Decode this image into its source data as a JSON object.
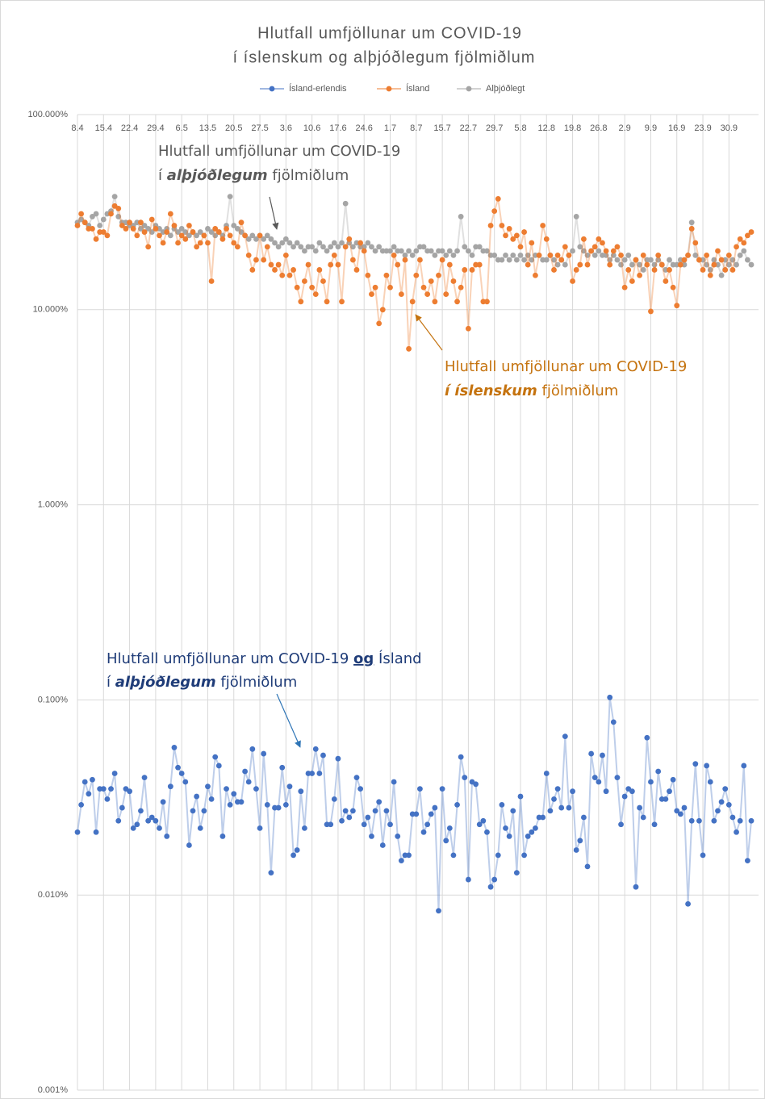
{
  "chart_data": {
    "type": "line",
    "title": [
      "Hlutfall umfjöllunar um COVID-19",
      "í íslenskum og alþjóðlegum fjölmiðlum"
    ],
    "log_scale": true,
    "grid": true,
    "legend": "top",
    "ylim": [
      0.001,
      100
    ],
    "yticks": [
      {
        "value": 100,
        "label": "100.000%"
      },
      {
        "value": 10,
        "label": "10.000%"
      },
      {
        "value": 1,
        "label": "1.000%"
      },
      {
        "value": 0.1,
        "label": "0.100%"
      },
      {
        "value": 0.01,
        "label": "0.010%"
      },
      {
        "value": 0.001,
        "label": "0.001%"
      }
    ],
    "categories": [
      "8.4",
      null,
      null,
      null,
      null,
      null,
      null,
      "15.4",
      null,
      null,
      null,
      null,
      null,
      null,
      "22.4",
      null,
      null,
      null,
      null,
      null,
      null,
      "29.4",
      null,
      null,
      null,
      null,
      null,
      null,
      "6.5",
      null,
      null,
      null,
      null,
      null,
      null,
      "13.5",
      null,
      null,
      null,
      null,
      null,
      null,
      "20.5",
      null,
      null,
      null,
      null,
      null,
      null,
      "27.5",
      null,
      null,
      null,
      null,
      null,
      null,
      "3.6",
      null,
      null,
      null,
      null,
      null,
      null,
      "10.6",
      null,
      null,
      null,
      null,
      null,
      null,
      "17.6",
      null,
      null,
      null,
      null,
      null,
      null,
      "24.6",
      null,
      null,
      null,
      null,
      null,
      null,
      "1.7",
      null,
      null,
      null,
      null,
      null,
      null,
      "8.7",
      null,
      null,
      null,
      null,
      null,
      null,
      "15.7",
      null,
      null,
      null,
      null,
      null,
      null,
      "22.7",
      null,
      null,
      null,
      null,
      null,
      null,
      "29.7",
      null,
      null,
      null,
      null,
      null,
      null,
      "5.8",
      null,
      null,
      null,
      null,
      null,
      null,
      "12.8",
      null,
      null,
      null,
      null,
      null,
      null,
      "19.8",
      null,
      null,
      null,
      null,
      null,
      null,
      "26.8",
      null,
      null,
      null,
      null,
      null,
      null,
      "2.9",
      null,
      null,
      null,
      null,
      null,
      null,
      "9.9",
      null,
      null,
      null,
      null,
      null,
      null,
      "16.9",
      null,
      null,
      null,
      null,
      null,
      null,
      "23.9",
      null,
      null,
      null,
      null,
      null,
      null,
      "30.9",
      null,
      null,
      null,
      null,
      null,
      null
    ],
    "series": [
      {
        "name": "Ísland-erlendis",
        "color": "#4472c4",
        "values": [
          0.021,
          0.029,
          0.038,
          0.033,
          0.039,
          0.021,
          0.035,
          0.035,
          0.031,
          0.035,
          0.042,
          0.024,
          0.028,
          0.035,
          0.034,
          0.022,
          0.023,
          0.027,
          0.04,
          0.024,
          0.025,
          0.024,
          0.022,
          0.03,
          0.02,
          0.036,
          0.057,
          0.045,
          0.042,
          0.038,
          0.018,
          0.027,
          0.032,
          0.022,
          0.027,
          0.036,
          0.031,
          0.051,
          0.046,
          0.02,
          0.035,
          0.029,
          0.033,
          0.03,
          0.03,
          0.043,
          0.038,
          0.056,
          0.035,
          0.022,
          0.053,
          0.029,
          0.013,
          0.028,
          0.028,
          0.045,
          0.029,
          0.036,
          0.016,
          0.017,
          0.034,
          0.022,
          0.042,
          0.042,
          0.056,
          0.042,
          0.052,
          0.023,
          0.023,
          0.031,
          0.05,
          0.024,
          0.027,
          0.025,
          0.027,
          0.04,
          0.035,
          0.023,
          0.025,
          0.02,
          0.027,
          0.03,
          0.018,
          0.027,
          0.023,
          0.038,
          0.02,
          0.015,
          0.016,
          0.016,
          0.026,
          0.026,
          0.035,
          0.021,
          0.023,
          0.026,
          0.028,
          0.0083,
          0.035,
          0.019,
          0.022,
          0.016,
          0.029,
          0.051,
          0.04,
          0.012,
          0.038,
          0.037,
          0.023,
          0.024,
          0.021,
          0.011,
          0.012,
          0.016,
          0.029,
          0.022,
          0.02,
          0.027,
          0.013,
          0.032,
          0.016,
          0.02,
          0.021,
          0.022,
          0.025,
          0.025,
          0.042,
          0.027,
          0.031,
          0.035,
          0.028,
          0.065,
          0.028,
          0.034,
          0.017,
          0.019,
          0.025,
          0.014,
          0.053,
          0.04,
          0.038,
          0.052,
          0.034,
          0.103,
          0.077,
          0.04,
          0.023,
          0.032,
          0.035,
          0.034,
          0.011,
          0.028,
          0.025,
          0.064,
          0.038,
          0.023,
          0.043,
          0.031,
          0.031,
          0.034,
          0.039,
          0.027,
          0.026,
          0.028,
          0.009,
          0.024,
          0.047,
          0.024,
          0.016,
          0.046,
          0.038,
          0.024,
          0.027,
          0.03,
          0.035,
          0.029,
          0.025,
          0.021,
          0.024,
          0.046,
          0.015,
          0.024
        ]
      },
      {
        "name": "Ísland",
        "color": "#ed7d31",
        "values": [
          27,
          31,
          28,
          26,
          26,
          23,
          25,
          25,
          24,
          31,
          34,
          33,
          27,
          26,
          28,
          26,
          24,
          28,
          25,
          21,
          29,
          26,
          24,
          22,
          25,
          31,
          27,
          22,
          24,
          23,
          27,
          25,
          21,
          22,
          24,
          22,
          14,
          26,
          25,
          23,
          26,
          24,
          22,
          21,
          28,
          24,
          19,
          16,
          18,
          24,
          18,
          21,
          17,
          16,
          17,
          15,
          19,
          15,
          16,
          13,
          11,
          14,
          17,
          13,
          12,
          16,
          14,
          11,
          17,
          19,
          17,
          11,
          21,
          23,
          18,
          16,
          22,
          20,
          15,
          12,
          13,
          8.5,
          10,
          15,
          13,
          19,
          17,
          12,
          18,
          6.3,
          11,
          15,
          18,
          13,
          12,
          14,
          11,
          15,
          18,
          12,
          17,
          14,
          11,
          13,
          16,
          8,
          16,
          17,
          17,
          11,
          11,
          27,
          32,
          37,
          27,
          24,
          26,
          23,
          24,
          21,
          25,
          17,
          22,
          15,
          19,
          27,
          23,
          19,
          16,
          19,
          18,
          21,
          19,
          14,
          16,
          17,
          23,
          17,
          20,
          21,
          23,
          22,
          20,
          17,
          20,
          21,
          19,
          13,
          16,
          14,
          18,
          15,
          19,
          17,
          9.8,
          16,
          19,
          17,
          14,
          16,
          13,
          10.5,
          17,
          18,
          19,
          26,
          22,
          18,
          16,
          19,
          15,
          17,
          20,
          18,
          16,
          19,
          16,
          21,
          23,
          22,
          24,
          25
        ]
      },
      {
        "name": "Alþjóðlegt",
        "color": "#a5a5a5",
        "values": [
          28,
          29,
          28,
          27,
          30,
          31,
          27,
          29,
          31,
          32,
          38,
          30,
          28,
          28,
          27,
          27,
          28,
          26,
          27,
          26,
          25,
          27,
          26,
          25,
          26,
          24,
          26,
          25,
          26,
          25,
          24,
          25,
          24,
          25,
          24,
          26,
          25,
          24,
          25,
          24,
          27,
          38,
          27,
          26,
          25,
          24,
          23,
          24,
          23,
          24,
          23,
          24,
          23,
          22,
          21,
          22,
          23,
          22,
          21,
          22,
          21,
          20,
          21,
          21,
          20,
          22,
          21,
          20,
          21,
          22,
          21,
          22,
          35,
          22,
          21,
          22,
          21,
          21,
          22,
          21,
          20,
          21,
          20,
          20,
          20,
          21,
          20,
          20,
          19,
          20,
          19,
          20,
          21,
          21,
          20,
          20,
          19,
          20,
          20,
          19,
          20,
          19,
          20,
          30,
          21,
          20,
          19,
          21,
          21,
          20,
          20,
          19,
          19,
          18,
          18,
          19,
          18,
          19,
          18,
          19,
          18,
          19,
          18,
          19,
          19,
          18,
          18,
          19,
          18,
          17,
          18,
          17,
          19,
          20,
          30,
          21,
          20,
          19,
          20,
          19,
          20,
          19,
          19,
          18,
          19,
          18,
          17,
          18,
          19,
          17,
          18,
          17,
          16,
          18,
          18,
          17,
          18,
          17,
          16,
          18,
          17,
          17,
          18,
          17,
          19,
          28,
          19,
          18,
          18,
          17,
          16,
          18,
          17,
          15,
          18,
          17,
          18,
          17,
          19,
          20,
          18,
          17
        ]
      }
    ],
    "annotations": [
      {
        "lines": [
          [
            "Hlutfall umfjöllunar um COVID-19"
          ],
          [
            "í ",
            "alþjóðlegum",
            " fjölmiðlum"
          ]
        ]
      },
      {
        "lines": [
          [
            "Hlutfall umfjöllunar um COVID-19"
          ],
          [
            "í íslenskum",
            " fjölmiðlum"
          ]
        ]
      },
      {
        "lines": [
          [
            "Hlutfall umfjöllunar um COVID-19 ",
            "og",
            " Ísland"
          ],
          [
            "í ",
            "alþjóðlegum",
            " fjölmiðlum"
          ]
        ]
      }
    ]
  }
}
